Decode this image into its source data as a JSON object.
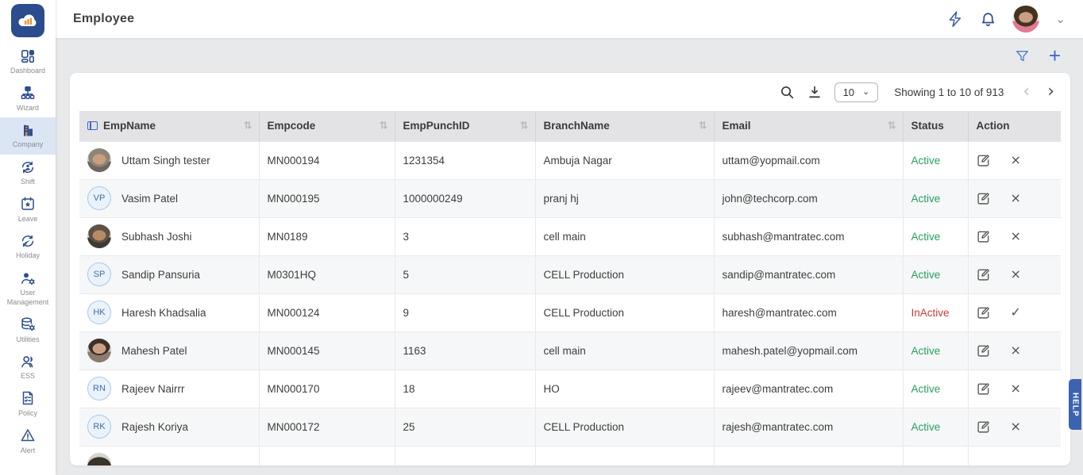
{
  "app": {
    "title": "Employee",
    "help_label": "HELP"
  },
  "sidebar": {
    "items": [
      {
        "label": "Dashboard"
      },
      {
        "label": "Wizard"
      },
      {
        "label": "Company"
      },
      {
        "label": "Shift"
      },
      {
        "label": "Leave"
      },
      {
        "label": "Holiday"
      },
      {
        "label": "User Management"
      },
      {
        "label": "Utilities"
      },
      {
        "label": "ESS"
      },
      {
        "label": "Policy"
      },
      {
        "label": "Alert"
      }
    ]
  },
  "toolbar": {
    "page_size": "10",
    "showing": "Showing 1 to 10 of 913"
  },
  "icons": {
    "sort": "⇅",
    "close": "×",
    "check": "✓",
    "prev": "‹",
    "next": "›",
    "chevron_down": "⌄",
    "plus": "+"
  },
  "table": {
    "columns": [
      {
        "label": "EmpName",
        "sortable": true
      },
      {
        "label": "Empcode",
        "sortable": true
      },
      {
        "label": "EmpPunchID",
        "sortable": true
      },
      {
        "label": "BranchName",
        "sortable": true
      },
      {
        "label": "Email",
        "sortable": true
      },
      {
        "label": "Status",
        "sortable": false
      },
      {
        "label": "Action",
        "sortable": false
      }
    ],
    "rows": [
      {
        "initials": "",
        "name": "Uttam Singh tester",
        "empcode": "MN000194",
        "punch_id": "1231354",
        "branch": "Ambuja Nagar",
        "email": "uttam@yopmail.com",
        "status": "Active",
        "toggle": "×"
      },
      {
        "initials": "VP",
        "name": "Vasim Patel",
        "empcode": "MN000195",
        "punch_id": "1000000249",
        "branch": "pranj hj",
        "email": "john@techcorp.com",
        "status": "Active",
        "toggle": "×"
      },
      {
        "initials": "",
        "name": "Subhash Joshi",
        "empcode": "MN0189",
        "punch_id": "3",
        "branch": "cell main",
        "email": "subhash@mantratec.com",
        "status": "Active",
        "toggle": "×"
      },
      {
        "initials": "SP",
        "name": "Sandip Pansuria",
        "empcode": "M0301HQ",
        "punch_id": "5",
        "branch": "CELL Production",
        "email": "sandip@mantratec.com",
        "status": "Active",
        "toggle": "×"
      },
      {
        "initials": "HK",
        "name": "Haresh Khadsalia",
        "empcode": "MN000124",
        "punch_id": "9",
        "branch": "CELL Production",
        "email": "haresh@mantratec.com",
        "status": "InActive",
        "toggle": "✓"
      },
      {
        "initials": "",
        "name": "Mahesh Patel",
        "empcode": "MN000145",
        "punch_id": "1163",
        "branch": "cell main",
        "email": "mahesh.patel@yopmail.com",
        "status": "Active",
        "toggle": "×"
      },
      {
        "initials": "RN",
        "name": "Rajeev Nairrr",
        "empcode": "MN000170",
        "punch_id": "18",
        "branch": "HO",
        "email": "rajeev@mantratec.com",
        "status": "Active",
        "toggle": "×"
      },
      {
        "initials": "RK",
        "name": "Rajesh Koriya",
        "empcode": "MN000172",
        "punch_id": "25",
        "branch": "CELL Production",
        "email": "rajesh@mantratec.com",
        "status": "Active",
        "toggle": "×"
      },
      {
        "initials": "",
        "name": "",
        "empcode": "",
        "punch_id": "",
        "branch": "",
        "email": "",
        "status": "",
        "toggle": ""
      }
    ]
  }
}
